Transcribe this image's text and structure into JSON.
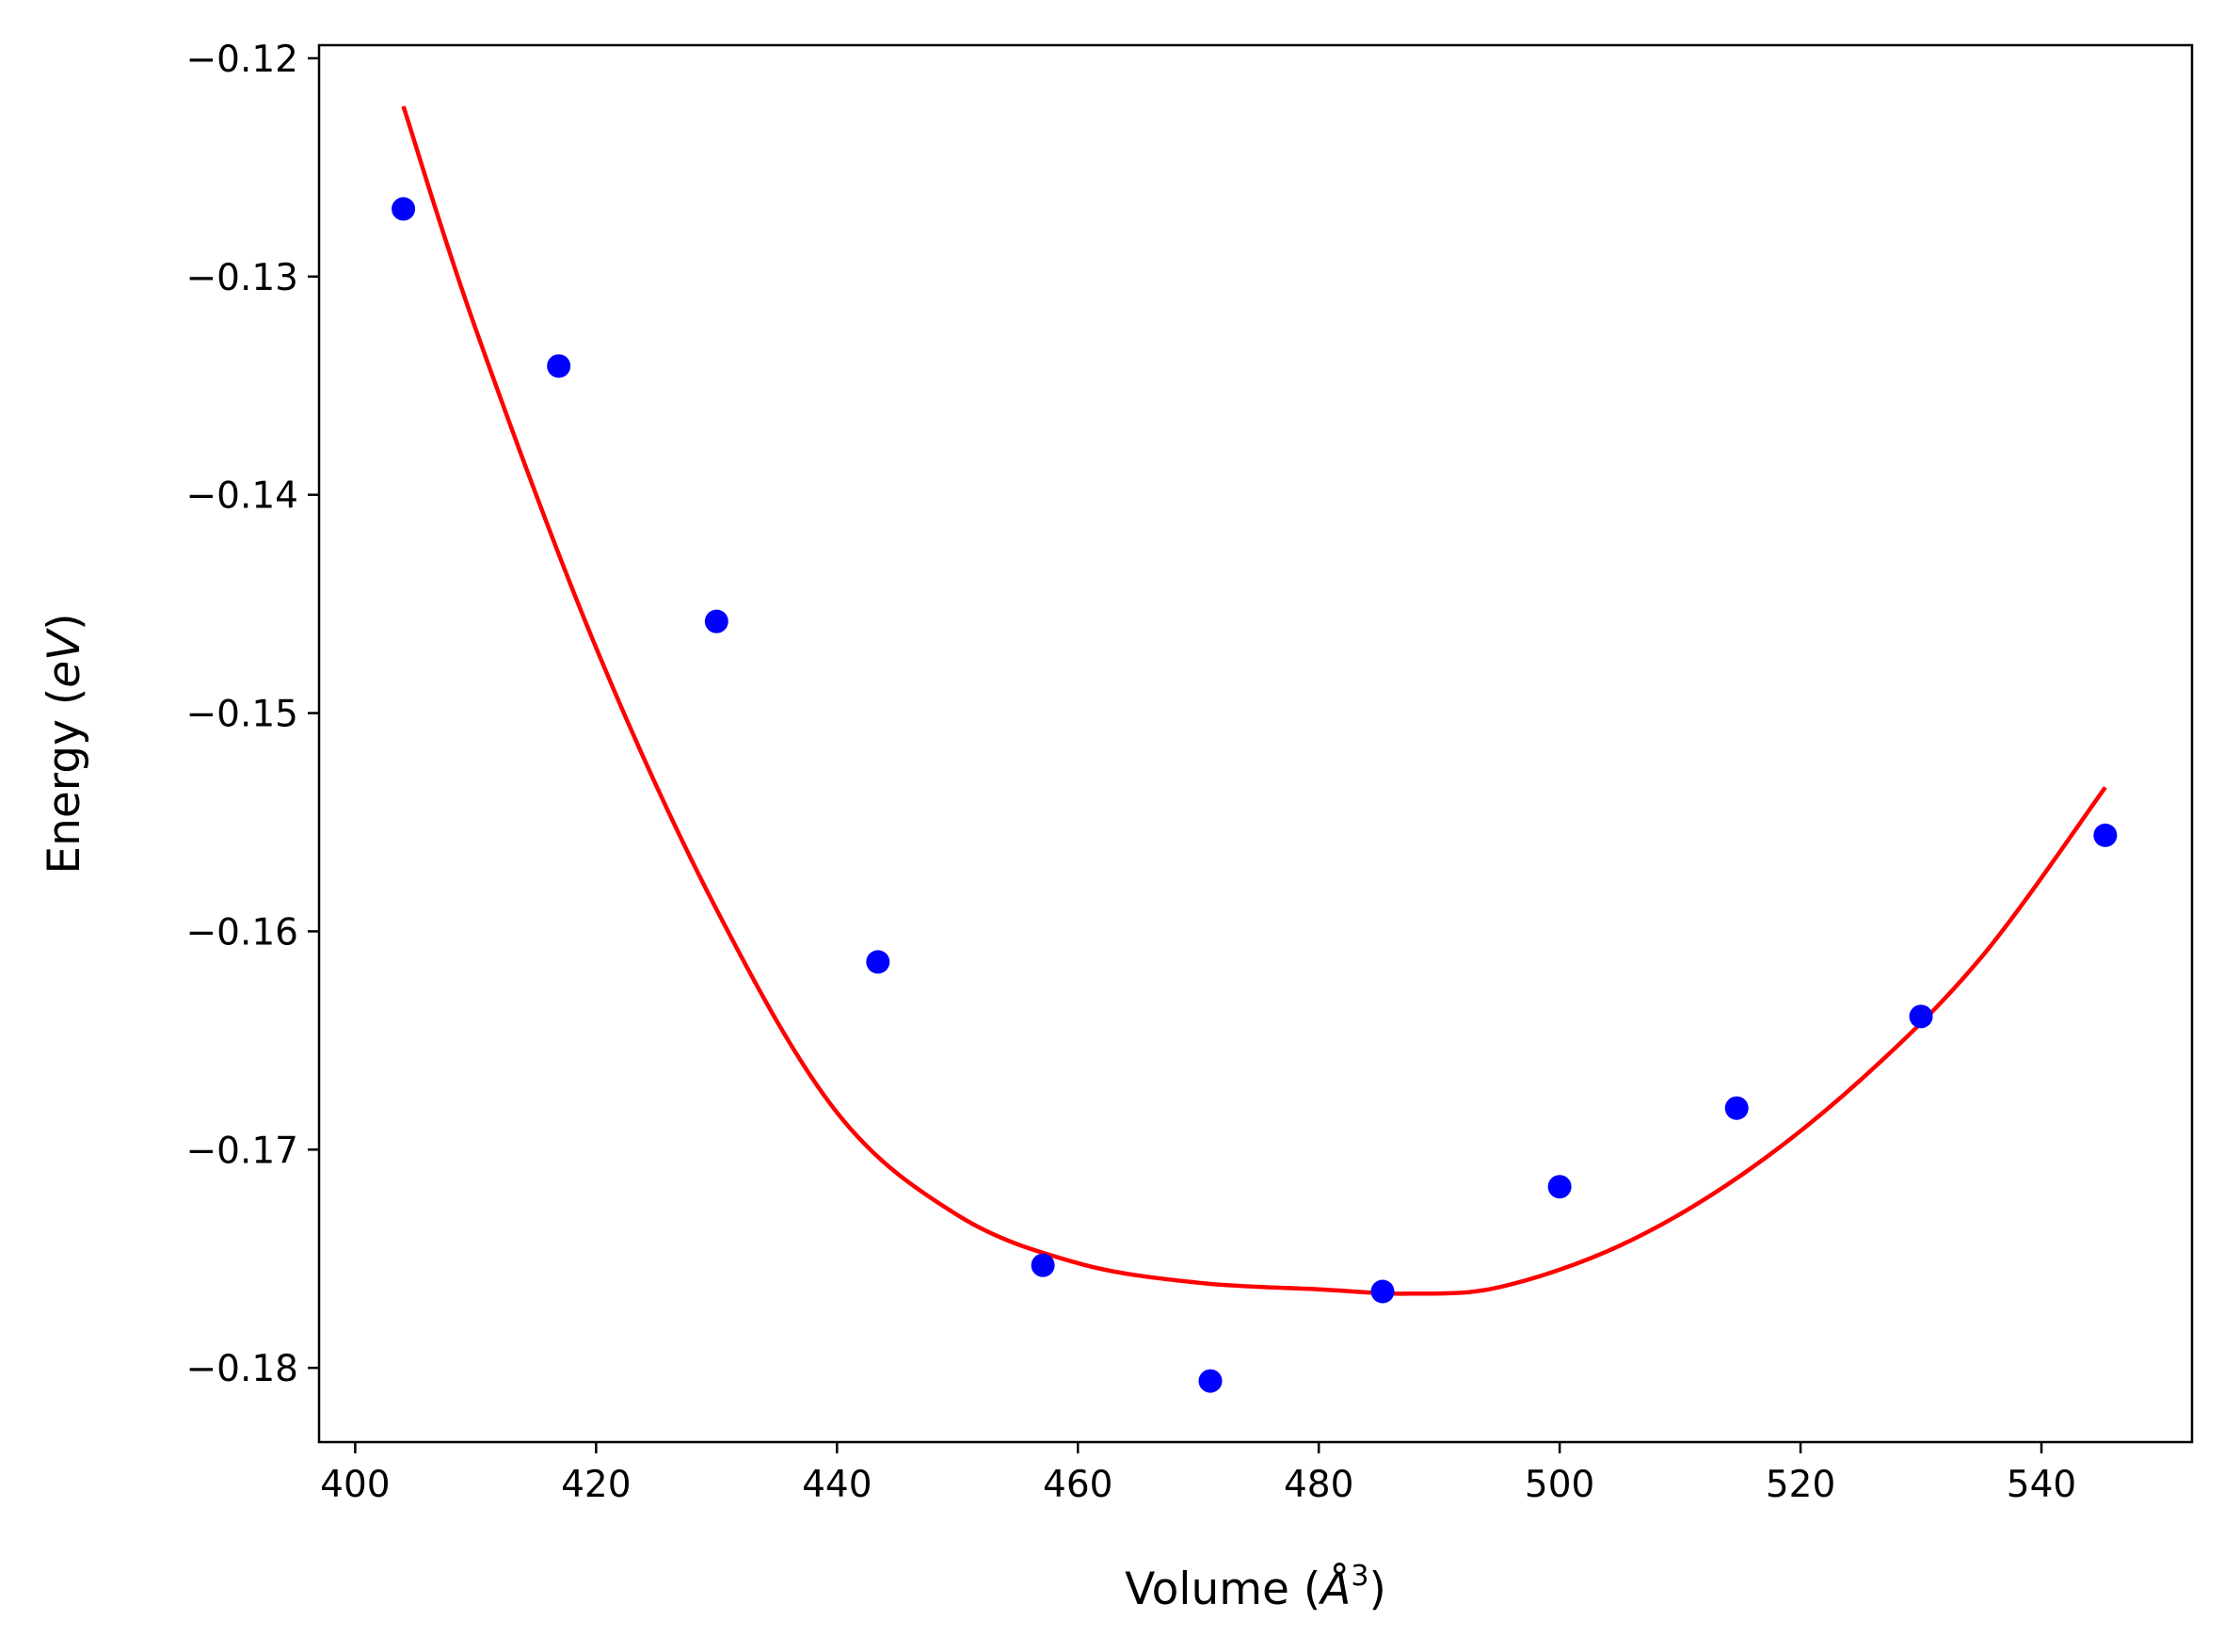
{
  "chart_data": {
    "type": "scatter",
    "title": "",
    "xlabel_parts": {
      "prefix": "Volume (",
      "symbol": "Å",
      "sup": "3",
      "suffix": ")"
    },
    "ylabel_parts": {
      "prefix": "Energy (",
      "symbol": "eV",
      "suffix": ")"
    },
    "xlim": [
      397,
      552.5
    ],
    "ylim": [
      -0.1834,
      -0.1194
    ],
    "x_ticks": [
      {
        "value": 400,
        "label": "400"
      },
      {
        "value": 420,
        "label": "420"
      },
      {
        "value": 440,
        "label": "440"
      },
      {
        "value": 460,
        "label": "460"
      },
      {
        "value": 480,
        "label": "480"
      },
      {
        "value": 500,
        "label": "500"
      },
      {
        "value": 520,
        "label": "520"
      },
      {
        "value": 540,
        "label": "540"
      }
    ],
    "y_ticks": [
      {
        "value": -0.12,
        "label": "−0.12"
      },
      {
        "value": -0.13,
        "label": "−0.13"
      },
      {
        "value": -0.14,
        "label": "−0.14"
      },
      {
        "value": -0.15,
        "label": "−0.15"
      },
      {
        "value": -0.16,
        "label": "−0.16"
      },
      {
        "value": -0.17,
        "label": "−0.17"
      },
      {
        "value": -0.18,
        "label": "−0.18"
      }
    ],
    "grid": false,
    "legend": "none",
    "series": [
      {
        "kind": "scatter",
        "color": "#0000ff",
        "points": [
          {
            "x": 404.0,
            "y": -0.1269
          },
          {
            "x": 416.9,
            "y": -0.1341
          },
          {
            "x": 430.0,
            "y": -0.1458
          },
          {
            "x": 443.4,
            "y": -0.1614
          },
          {
            "x": 457.1,
            "y": -0.1753
          },
          {
            "x": 471.0,
            "y": -0.1806
          },
          {
            "x": 485.3,
            "y": -0.1765
          },
          {
            "x": 500.0,
            "y": -0.1717
          },
          {
            "x": 514.7,
            "y": -0.1681
          },
          {
            "x": 530.0,
            "y": -0.1639
          },
          {
            "x": 545.3,
            "y": -0.1556
          }
        ]
      },
      {
        "kind": "line",
        "color": "#ff0000",
        "fit": "polynomial-degree-2",
        "points": [
          {
            "x": 404.0,
            "y": -0.1222
          },
          {
            "x": 410.0,
            "y": -0.1324
          },
          {
            "x": 420.0,
            "y": -0.147
          },
          {
            "x": 430.0,
            "y": -0.159
          },
          {
            "x": 440.0,
            "y": -0.1683
          },
          {
            "x": 450.0,
            "y": -0.173
          },
          {
            "x": 460.0,
            "y": -0.1752
          },
          {
            "x": 470.0,
            "y": -0.1761
          },
          {
            "x": 480.0,
            "y": -0.1764
          },
          {
            "x": 487.5,
            "y": -0.1766
          },
          {
            "x": 495.0,
            "y": -0.1763
          },
          {
            "x": 505.0,
            "y": -0.1744
          },
          {
            "x": 515.0,
            "y": -0.1712
          },
          {
            "x": 525.0,
            "y": -0.1668
          },
          {
            "x": 535.0,
            "y": -0.1612
          },
          {
            "x": 545.3,
            "y": -0.1534
          }
        ]
      }
    ]
  }
}
